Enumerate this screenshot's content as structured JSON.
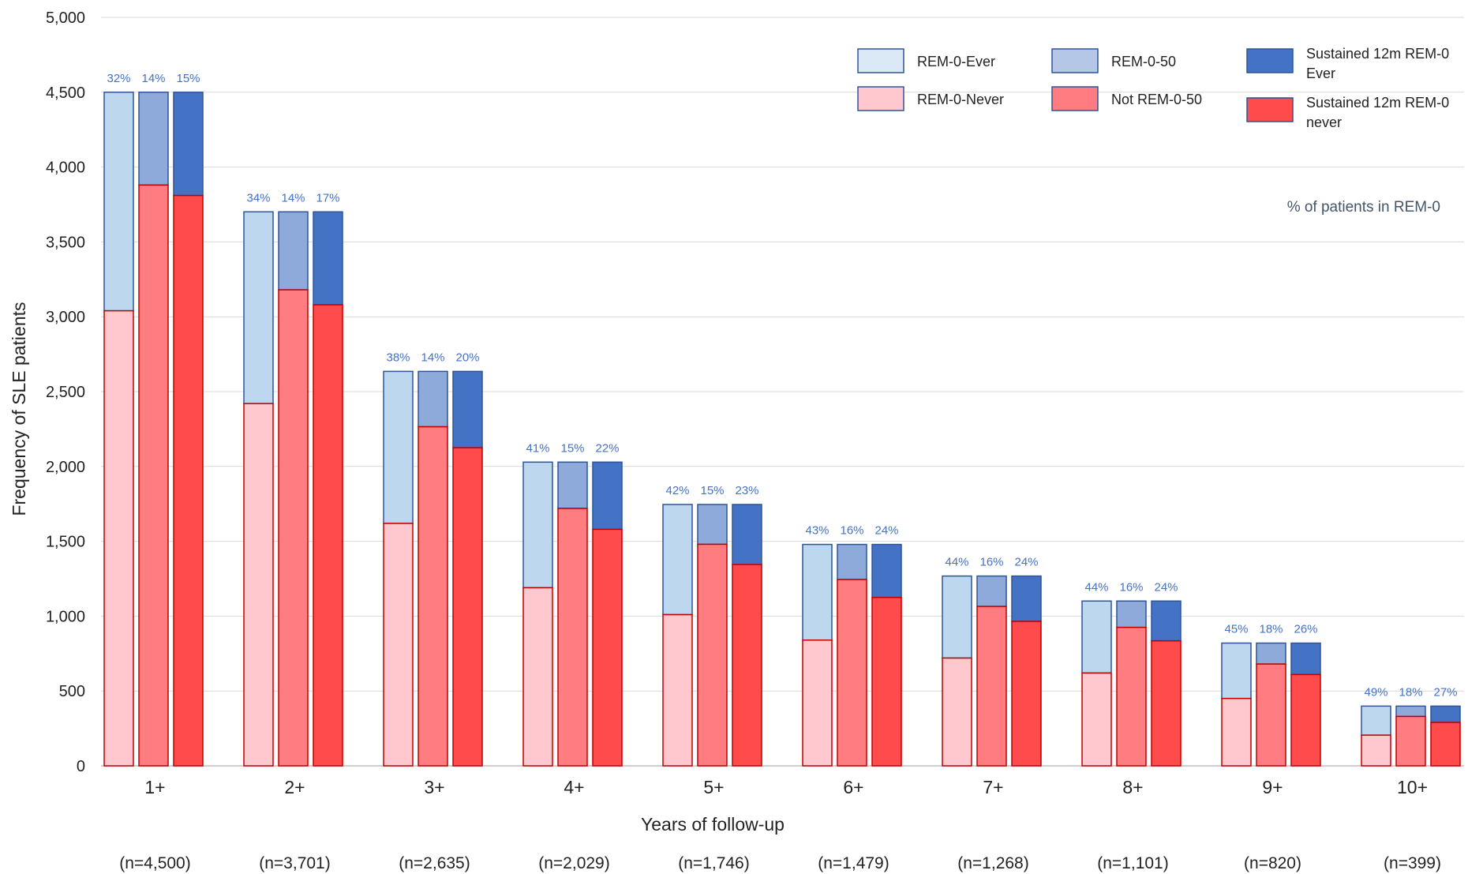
{
  "chart_data": {
    "type": "bar",
    "title": "",
    "xlabel": "Years of follow-up",
    "ylabel": "Frequency of SLE patients",
    "ylim": [
      0,
      5000
    ],
    "yticks": [
      0,
      500,
      1000,
      1500,
      2000,
      2500,
      3000,
      3500,
      4000,
      4500,
      5000
    ],
    "ytick_labels": [
      "0",
      "500",
      "1,000",
      "1,500",
      "2,000",
      "2,500",
      "3,000",
      "3,500",
      "4,000",
      "4,500",
      "5,000"
    ],
    "grid": true,
    "legend_position": "top-right",
    "categories": [
      "1+",
      "2+",
      "3+",
      "4+",
      "5+",
      "6+",
      "7+",
      "8+",
      "9+",
      "10+"
    ],
    "n_labels": [
      "(n=4,500)",
      "(n=3,701)",
      "(n=2,635)",
      "(n=2,029)",
      "(n=1,746)",
      "(n=1,479)",
      "(n=1,268)",
      "(n=1,101)",
      "(n=820)",
      "(n=399)"
    ],
    "totals": [
      4500,
      3701,
      2635,
      2029,
      1746,
      1479,
      1268,
      1101,
      820,
      399
    ],
    "note": "% of patients in REM-0",
    "groups": [
      {
        "name": "REM-0",
        "top_series": "REM-0-Ever",
        "bottom_series": "REM-0-Never",
        "top_color": "#bdd7ee",
        "bottom_color": "#ffc7ce",
        "bottom_values": [
          3040,
          2420,
          1620,
          1190,
          1010,
          840,
          720,
          620,
          450,
          205
        ],
        "pct_labels": [
          "32%",
          "34%",
          "38%",
          "41%",
          "42%",
          "43%",
          "44%",
          "44%",
          "45%",
          "49%"
        ]
      },
      {
        "name": "REM-0-50",
        "top_series": "REM-0-50",
        "bottom_series": "Not REM-0-50",
        "top_color": "#8eaadb",
        "bottom_color": "#ff7c80",
        "bottom_values": [
          3880,
          3180,
          2265,
          1720,
          1480,
          1245,
          1065,
          925,
          680,
          330
        ],
        "pct_labels": [
          "14%",
          "14%",
          "14%",
          "15%",
          "15%",
          "16%",
          "16%",
          "16%",
          "18%",
          "18%"
        ]
      },
      {
        "name": "Sustained 12m REM-0",
        "top_series": "Sustained 12m REM-0 Ever",
        "bottom_series": "Sustained 12m REM-0 never",
        "top_color": "#4472c4",
        "bottom_color": "#ff4b4b",
        "bottom_values": [
          3810,
          3080,
          2125,
          1580,
          1345,
          1125,
          965,
          835,
          610,
          290
        ],
        "pct_labels": [
          "15%",
          "17%",
          "20%",
          "22%",
          "23%",
          "24%",
          "24%",
          "24%",
          "26%",
          "27%"
        ]
      }
    ],
    "legend": [
      {
        "label": "REM-0-Ever",
        "color": "#dbe8f6"
      },
      {
        "label": "REM-0-Never",
        "color": "#ffc7ce"
      },
      {
        "label": "REM-0-50",
        "color": "#b4c7e7"
      },
      {
        "label": "Not REM-0-50",
        "color": "#ff7c80"
      },
      {
        "label_lines": [
          "Sustained 12m REM-0",
          "Ever"
        ],
        "color": "#4472c4"
      },
      {
        "label_lines": [
          "Sustained 12m REM-0",
          "never"
        ],
        "color": "#ff4b4b"
      }
    ],
    "colors": {
      "outline_top": "#2f5597",
      "outline_bottom": "#c00000",
      "grid": "#d9d9d9",
      "pct_text": "#4472c4",
      "note_text": "#44546a"
    }
  }
}
